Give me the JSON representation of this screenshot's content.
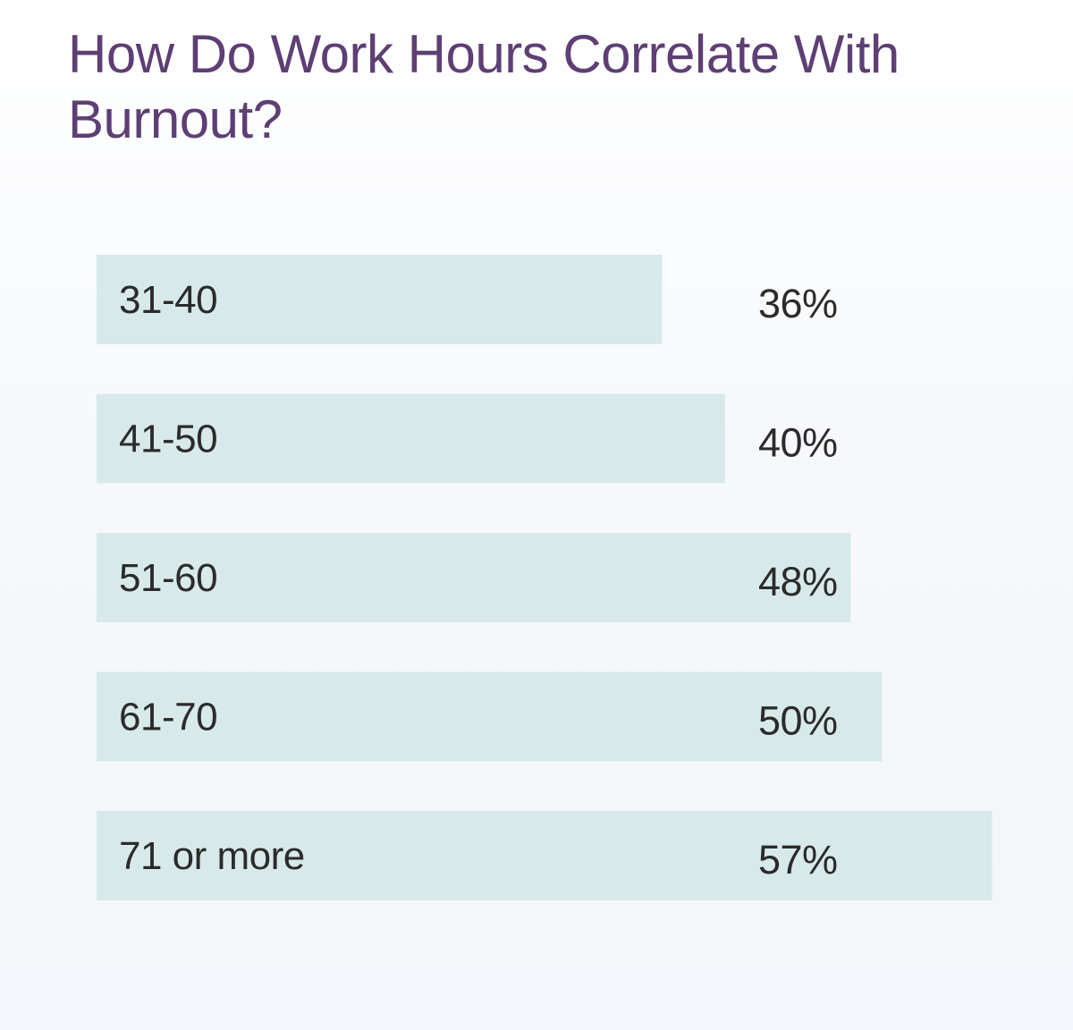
{
  "chart_data": {
    "type": "bar",
    "orientation": "horizontal",
    "title": "How Do Work Hours Correlate With Burnout?",
    "categories": [
      "31-40",
      "41-50",
      "51-60",
      "61-70",
      "71 or more"
    ],
    "values": [
      36,
      40,
      48,
      50,
      57
    ],
    "value_labels": [
      "36%",
      "40%",
      "48%",
      "50%",
      "57%"
    ],
    "unit": "%",
    "grid": false,
    "legend": "none"
  },
  "colors": {
    "title": "#5e3f74",
    "bar": "#d8e9e9",
    "text": "#2b2b2b",
    "background": "#f5f7fa"
  }
}
